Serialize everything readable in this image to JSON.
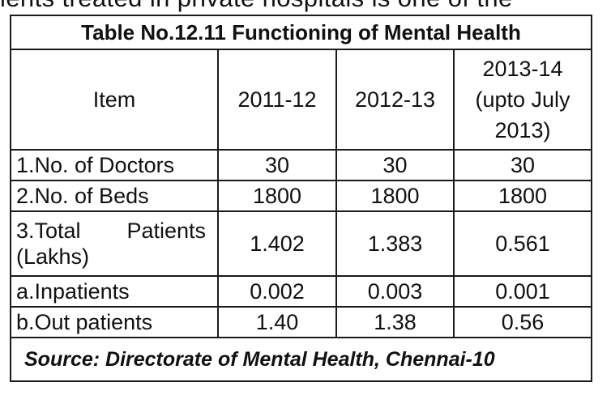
{
  "fragment_above": "ients treated in private hospitals is one of the",
  "table": {
    "title": "Table No.12.11  Functioning of Mental Health",
    "headers": {
      "item": "Item",
      "y1": "2011-12",
      "y2": "2012-13",
      "y3_line1": "2013-14",
      "y3_line2": "(upto July",
      "y3_line3": "2013)"
    },
    "rows": [
      {
        "label": "1.No. of Doctors",
        "v1": "30",
        "v2": "30",
        "v3": "30"
      },
      {
        "label": "2.No. of Beds",
        "v1": "1800",
        "v2": "1800",
        "v3": "1800"
      },
      {
        "label_line1_a": "3.Total",
        "label_line1_b": "Patients",
        "label_line2": "(Lakhs)",
        "v1": "1.402",
        "v2": "1.383",
        "v3": "0.561"
      },
      {
        "label": "a.Inpatients",
        "v1": "0.002",
        "v2": "0.003",
        "v3": "0.001"
      },
      {
        "label": "b.Out patients",
        "v1": "1.40",
        "v2": "1.38",
        "v3": "0.56"
      }
    ],
    "source": "Source:  Directorate of Mental Health, Chennai-10"
  }
}
